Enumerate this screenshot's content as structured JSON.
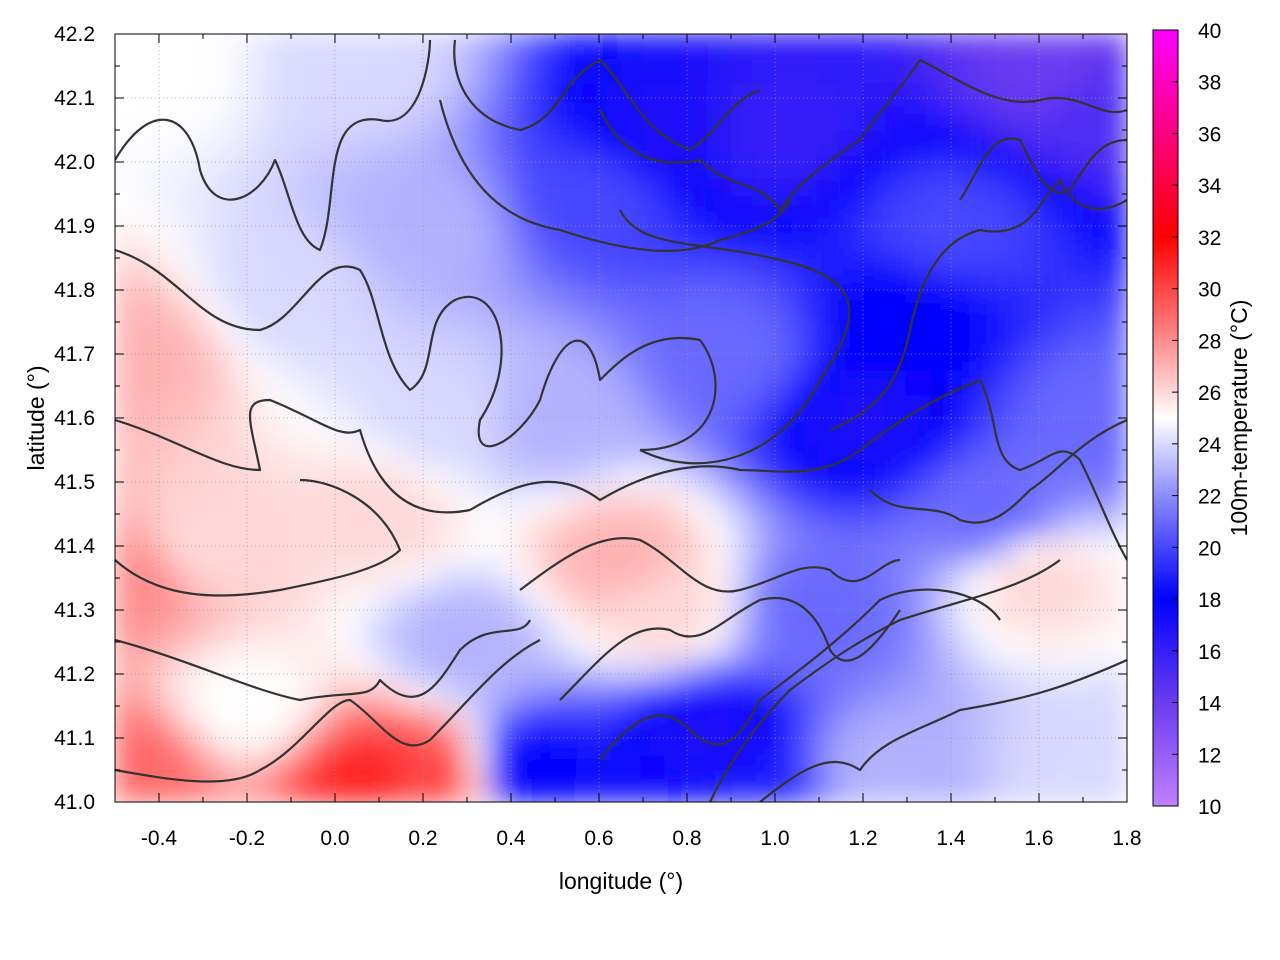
{
  "chart_data": {
    "type": "heatmap",
    "title": "",
    "xlabel": "longitude (°)",
    "ylabel": "latitude (°)",
    "colorbar_label": "100m-temperature (°C)",
    "xlim": [
      -0.5,
      1.8
    ],
    "ylim": [
      41.0,
      42.2
    ],
    "x_ticks": [
      -0.4,
      -0.2,
      0.0,
      0.2,
      0.4,
      0.6,
      0.8,
      1.0,
      1.2,
      1.4,
      1.6,
      1.8
    ],
    "x_tick_labels": [
      "-0.4",
      "-0.2",
      "0.0",
      "0.2",
      "0.4",
      "0.6",
      "0.8",
      "1.0",
      "1.2",
      "1.4",
      "1.6",
      "1.8"
    ],
    "y_ticks": [
      41.0,
      41.1,
      41.2,
      41.3,
      41.4,
      41.5,
      41.6,
      41.7,
      41.8,
      41.9,
      42.0,
      42.1,
      42.2
    ],
    "y_tick_labels": [
      "41.0",
      "41.1",
      "41.2",
      "41.3",
      "41.4",
      "41.5",
      "41.6",
      "41.7",
      "41.8",
      "41.9",
      "42.0",
      "42.1",
      "42.2"
    ],
    "colorbar_range": [
      10,
      40
    ],
    "colorbar_ticks": [
      10,
      12,
      14,
      16,
      18,
      20,
      22,
      24,
      26,
      28,
      30,
      32,
      34,
      36,
      38,
      40
    ],
    "colorbar_tick_labels": [
      "10",
      "12",
      "14",
      "16",
      "18",
      "20",
      "22",
      "24",
      "26",
      "28",
      "30",
      "32",
      "34",
      "36",
      "38",
      "40"
    ],
    "colormap": [
      {
        "value": 10,
        "color": "#c080ff"
      },
      {
        "value": 14,
        "color": "#6a3cf0"
      },
      {
        "value": 18,
        "color": "#0000ff"
      },
      {
        "value": 22,
        "color": "#8c8cff"
      },
      {
        "value": 25,
        "color": "#ffffff"
      },
      {
        "value": 28,
        "color": "#ff8c8c"
      },
      {
        "value": 32,
        "color": "#ff0000"
      },
      {
        "value": 36,
        "color": "#ff0080"
      },
      {
        "value": 40,
        "color": "#ff00ff"
      }
    ],
    "grid": true,
    "contours": true,
    "field_samples": [
      {
        "lon": -0.45,
        "lat": 41.05,
        "t": 29
      },
      {
        "lon": -0.45,
        "lat": 41.35,
        "t": 28
      },
      {
        "lon": -0.45,
        "lat": 41.7,
        "t": 27
      },
      {
        "lon": -0.3,
        "lat": 41.4,
        "t": 26
      },
      {
        "lon": -0.2,
        "lat": 41.15,
        "t": 25
      },
      {
        "lon": -0.1,
        "lat": 41.8,
        "t": 24
      },
      {
        "lon": 0.08,
        "lat": 41.03,
        "t": 31
      },
      {
        "lon": 0.22,
        "lat": 41.04,
        "t": 30
      },
      {
        "lon": 0.1,
        "lat": 41.45,
        "t": 26
      },
      {
        "lon": 0.2,
        "lat": 41.9,
        "t": 23
      },
      {
        "lon": 0.3,
        "lat": 41.25,
        "t": 23
      },
      {
        "lon": 0.45,
        "lat": 41.05,
        "t": 18
      },
      {
        "lon": 0.5,
        "lat": 41.6,
        "t": 23
      },
      {
        "lon": 0.6,
        "lat": 41.95,
        "t": 20
      },
      {
        "lon": 0.65,
        "lat": 41.38,
        "t": 27
      },
      {
        "lon": 0.75,
        "lat": 41.3,
        "t": 26
      },
      {
        "lon": 0.75,
        "lat": 42.05,
        "t": 17
      },
      {
        "lon": 0.85,
        "lat": 41.1,
        "t": 17
      },
      {
        "lon": 0.95,
        "lat": 41.0,
        "t": 19
      },
      {
        "lon": 0.9,
        "lat": 41.7,
        "t": 21
      },
      {
        "lon": 1.0,
        "lat": 42.05,
        "t": 16
      },
      {
        "lon": 1.1,
        "lat": 41.3,
        "t": 21
      },
      {
        "lon": 1.2,
        "lat": 41.6,
        "t": 17
      },
      {
        "lon": 1.3,
        "lat": 41.75,
        "t": 18
      },
      {
        "lon": 1.25,
        "lat": 41.05,
        "t": 23
      },
      {
        "lon": 1.4,
        "lat": 41.9,
        "t": 20
      },
      {
        "lon": 1.5,
        "lat": 41.45,
        "t": 21
      },
      {
        "lon": 1.6,
        "lat": 41.35,
        "t": 26
      },
      {
        "lon": 1.65,
        "lat": 42.15,
        "t": 14
      },
      {
        "lon": 1.75,
        "lat": 42.1,
        "t": 15
      },
      {
        "lon": 1.7,
        "lat": 41.05,
        "t": 24
      },
      {
        "lon": 1.75,
        "lat": 41.6,
        "t": 21
      },
      {
        "lon": -0.4,
        "lat": 42.15,
        "t": 25
      },
      {
        "lon": 0.05,
        "lat": 42.15,
        "t": 24
      },
      {
        "lon": 0.25,
        "lat": 41.6,
        "t": 24
      }
    ]
  }
}
